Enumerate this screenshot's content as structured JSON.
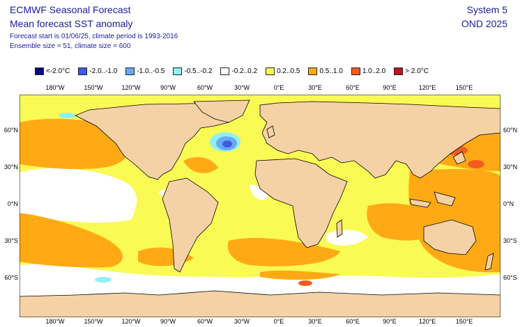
{
  "header": {
    "title_line1": "ECMWF Seasonal Forecast",
    "title_line2": "Mean forecast SST anomaly",
    "info_line1": "Forecast start is 01/06/25, climate period is 1993-2016",
    "info_line2": "Ensemble size = 51, climate size = 600",
    "system": "System 5",
    "period": "OND 2025"
  },
  "legend": [
    {
      "label": "<-2.0°C",
      "color": "#0a0a82"
    },
    {
      "label": "-2.0..-1.0",
      "color": "#3c5aeb"
    },
    {
      "label": "-1.0..-0.5",
      "color": "#6aaaf0"
    },
    {
      "label": "-0.5..-0.2",
      "color": "#8ff0f5"
    },
    {
      "label": "-0.2..0.2",
      "color": "#ffffff"
    },
    {
      "label": "0.2..0.5",
      "color": "#fafa55"
    },
    {
      "label": "0.5..1.0",
      "color": "#ffaa14"
    },
    {
      "label": "1.0..2.0",
      "color": "#f55a1e"
    },
    {
      "label": "> 2.0°C",
      "color": "#c80f1e"
    }
  ],
  "axes": {
    "lon_labels": [
      "180°W",
      "150°W",
      "120°W",
      "90°W",
      "60°W",
      "30°W",
      "0°E",
      "30°E",
      "60°E",
      "90°E",
      "120°E",
      "150°E"
    ],
    "lat_labels": [
      "60°N",
      "30°N",
      "0°N",
      "30°S",
      "60°S"
    ]
  },
  "colors": {
    "land": "#f5d2a5",
    "ocean_neutral": "#ffffff",
    "coast": "#000000",
    "text": "#1a1aa0"
  }
}
